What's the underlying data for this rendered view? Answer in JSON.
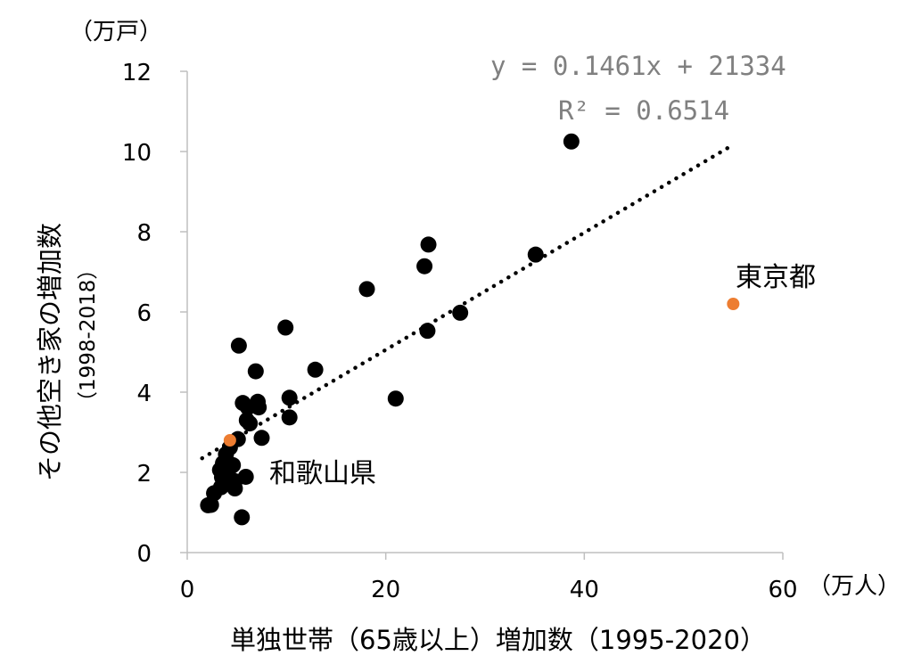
{
  "chart_data": {
    "type": "scatter",
    "xlabel": "単独世帯（65歳以上）増加数（1995-2020）",
    "x_unit": "（万人）",
    "ylabel": "その他空き家の増加数",
    "ylabel_sub": "（1998-2018）",
    "y_unit": "（万戸）",
    "xlim": [
      0,
      60
    ],
    "ylim": [
      0,
      12
    ],
    "x_ticks": [
      0,
      20,
      40,
      60
    ],
    "y_ticks": [
      0,
      2,
      4,
      6,
      8,
      10,
      12
    ],
    "grid": false,
    "trendline": {
      "style": "dotted",
      "equation": "y = 0.1461x + 21334",
      "r_squared": "R² = 0.6514",
      "x_range": [
        1.5,
        55
      ]
    },
    "colors": {
      "point": "#000000",
      "highlight": "#ed7d31",
      "equation": "#808080"
    },
    "series": [
      {
        "points": [
          [
            38.7,
            10.25
          ],
          [
            24.3,
            7.68
          ],
          [
            23.9,
            7.14
          ],
          [
            35.1,
            7.43
          ],
          [
            18.1,
            6.57
          ],
          [
            27.5,
            5.98
          ],
          [
            24.2,
            5.53
          ],
          [
            9.9,
            5.61
          ],
          [
            5.2,
            5.16
          ],
          [
            6.9,
            4.52
          ],
          [
            12.9,
            4.56
          ],
          [
            21.0,
            3.84
          ],
          [
            10.3,
            3.86
          ],
          [
            10.3,
            3.37
          ],
          [
            5.6,
            3.73
          ],
          [
            7.1,
            3.76
          ],
          [
            7.2,
            3.62
          ],
          [
            6.1,
            3.62
          ],
          [
            6.3,
            3.22
          ],
          [
            7.5,
            2.86
          ],
          [
            6.0,
            3.3
          ],
          [
            5.1,
            2.83
          ],
          [
            4.3,
            2.62
          ],
          [
            3.9,
            2.45
          ],
          [
            3.6,
            2.23
          ],
          [
            4.6,
            2.18
          ],
          [
            3.3,
            2.06
          ],
          [
            4.1,
            1.97
          ],
          [
            3.5,
            1.88
          ],
          [
            5.9,
            1.89
          ],
          [
            4.8,
            1.78
          ],
          [
            3.9,
            1.72
          ],
          [
            3.4,
            1.63
          ],
          [
            4.8,
            1.6
          ],
          [
            2.7,
            1.48
          ],
          [
            2.4,
            1.19
          ],
          [
            2.1,
            1.18
          ],
          [
            5.5,
            0.88
          ]
        ]
      },
      {
        "name": "和歌山県",
        "points": [
          [
            4.3,
            2.8
          ]
        ]
      },
      {
        "name": "東京都",
        "points": [
          [
            55.0,
            6.2
          ]
        ]
      }
    ]
  }
}
